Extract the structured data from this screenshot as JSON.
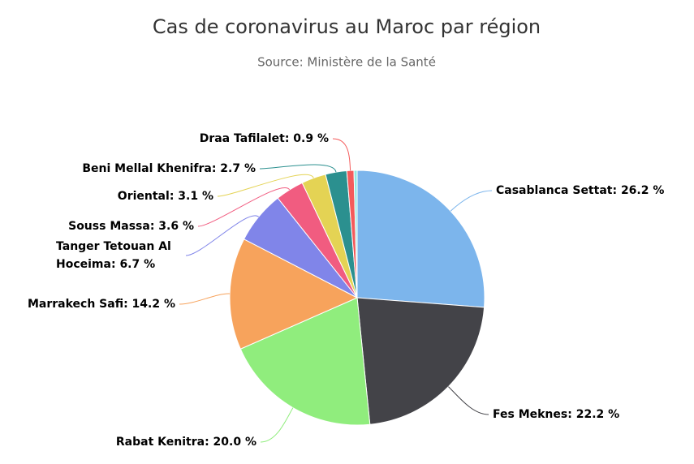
{
  "chart_data": {
    "type": "pie",
    "title": "Cas de coronavirus au Maroc par région",
    "subtitle": "Source: Ministère de la Santé",
    "categories": [
      "Casablanca Settat",
      "Fes Meknes",
      "Rabat Kenitra",
      "Marrakech Safi",
      "Tanger Tetouan Al Hoceima",
      "Souss Massa",
      "Oriental",
      "Beni Mellal Khenifra",
      "Draa Tafilalet",
      null
    ],
    "values": [
      26.2,
      22.2,
      20.0,
      14.2,
      6.7,
      3.6,
      3.1,
      2.7,
      0.9,
      0.4
    ],
    "value_labels": [
      ": 26.2 %",
      ": 22.2 %",
      ": 20.0 %",
      ": 14.2 %",
      ": 6.7 %",
      ": 3.6 %",
      ": 3.1 %",
      ": 2.7 %",
      ": 0.9 %",
      null
    ],
    "colors": [
      "#7cb5ec",
      "#434348",
      "#90ed7d",
      "#f7a35c",
      "#8085e9",
      "#f15c80",
      "#e4d354",
      "#2b908f",
      "#f45b5b",
      "#91e8e1"
    ]
  }
}
